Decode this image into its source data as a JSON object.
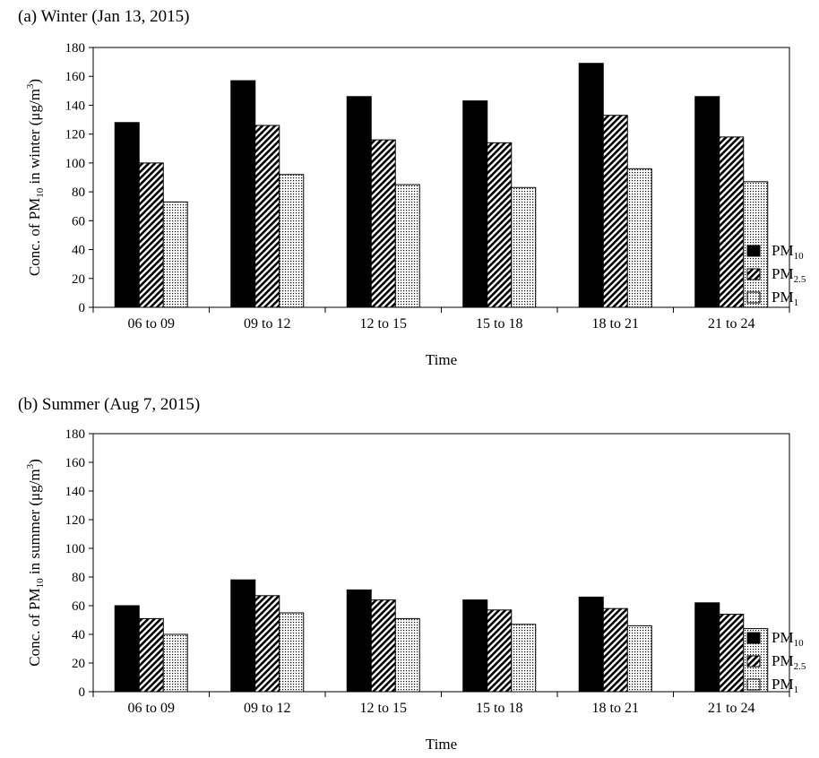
{
  "chart_data": [
    {
      "type": "bar",
      "title": "(a) Winter (Jan 13, 2015)",
      "xlabel": "Time",
      "ylabel": {
        "pre": "Conc. of PM",
        "sub": "10",
        "mid": " in winter (μg/m",
        "sup": "3",
        "post": ")"
      },
      "ylim": [
        0,
        180
      ],
      "yticks": [
        "0",
        "20",
        "40",
        "60",
        "80",
        "100",
        "120",
        "140",
        "160",
        "180"
      ],
      "categories": [
        "06 to 09",
        "09 to 12",
        "12 to 15",
        "15 to 18",
        "18 to 21",
        "21 to 24"
      ],
      "legend_position": "right",
      "grid": false,
      "series": [
        {
          "name": {
            "base": "PM",
            "sub": "10"
          },
          "pattern": "solid",
          "values": [
            128,
            157,
            146,
            143,
            169,
            146
          ]
        },
        {
          "name": {
            "base": "PM",
            "sub": "2.5"
          },
          "pattern": "diagonal",
          "values": [
            100,
            126,
            116,
            114,
            133,
            118
          ]
        },
        {
          "name": {
            "base": "PM",
            "sub": "1"
          },
          "pattern": "dotted",
          "values": [
            73,
            92,
            85,
            83,
            96,
            87
          ]
        }
      ]
    },
    {
      "type": "bar",
      "title": "(b) Summer (Aug 7, 2015)",
      "xlabel": "Time",
      "ylabel": {
        "pre": "Conc. of PM",
        "sub": "10",
        "mid": " in summer (μg/m",
        "sup": "3",
        "post": ")"
      },
      "ylim": [
        0,
        180
      ],
      "yticks": [
        "0",
        "20",
        "40",
        "60",
        "80",
        "100",
        "120",
        "140",
        "160",
        "180"
      ],
      "categories": [
        "06 to 09",
        "09 to 12",
        "12 to 15",
        "15 to 18",
        "18 to 21",
        "21 to 24"
      ],
      "legend_position": "right",
      "grid": false,
      "series": [
        {
          "name": {
            "base": "PM",
            "sub": "10"
          },
          "pattern": "solid",
          "values": [
            60,
            78,
            71,
            64,
            66,
            62
          ]
        },
        {
          "name": {
            "base": "PM",
            "sub": "2.5"
          },
          "pattern": "diagonal",
          "values": [
            51,
            67,
            64,
            57,
            58,
            54
          ]
        },
        {
          "name": {
            "base": "PM",
            "sub": "1"
          },
          "pattern": "dotted",
          "values": [
            40,
            55,
            51,
            47,
            46,
            44
          ]
        }
      ]
    }
  ]
}
